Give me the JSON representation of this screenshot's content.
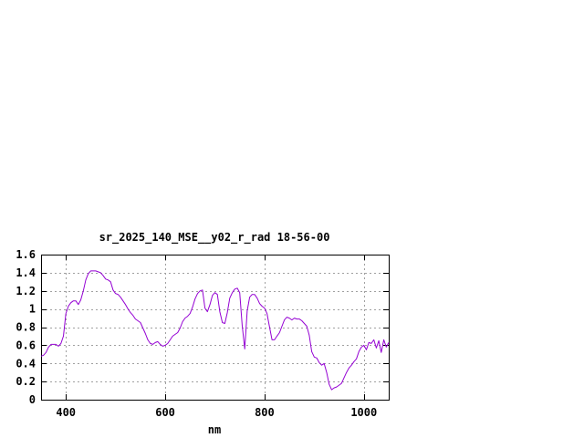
{
  "chart_data": {
    "type": "line",
    "title": "sr_2025_140_MSE__y02_r_rad 18-56-00",
    "xlabel": "nm",
    "ylabel": "",
    "xlim": [
      350,
      1050
    ],
    "ylim": [
      0,
      1.6
    ],
    "x_ticks": [
      400,
      600,
      800,
      1000
    ],
    "x_tick_labels": [
      "400",
      "600",
      "800",
      "1000"
    ],
    "y_ticks": [
      0,
      0.2,
      0.4,
      0.6,
      0.8,
      1.0,
      1.2,
      1.4,
      1.6
    ],
    "y_tick_labels": [
      "0",
      "0.2",
      "0.4",
      "0.6",
      "0.8",
      "1",
      "1.2",
      "1.4",
      "1.6"
    ],
    "grid": true,
    "colors": {
      "line": "#9400d3",
      "grid": "#a0a0a0",
      "axis": "#000000"
    },
    "series": [
      {
        "x": [
          350,
          355,
          360,
          365,
          370,
          375,
          380,
          385,
          390,
          395,
          400,
          405,
          410,
          415,
          420,
          425,
          430,
          435,
          440,
          445,
          450,
          455,
          460,
          465,
          470,
          475,
          480,
          485,
          490,
          495,
          500,
          505,
          510,
          515,
          520,
          525,
          530,
          535,
          540,
          545,
          550,
          555,
          560,
          565,
          570,
          575,
          580,
          585,
          590,
          595,
          600,
          605,
          610,
          615,
          620,
          625,
          630,
          635,
          640,
          645,
          650,
          655,
          660,
          665,
          670,
          675,
          680,
          685,
          690,
          695,
          700,
          705,
          710,
          715,
          720,
          725,
          730,
          735,
          740,
          745,
          750,
          755,
          760,
          765,
          770,
          775,
          780,
          785,
          790,
          795,
          800,
          805,
          810,
          815,
          820,
          825,
          830,
          835,
          840,
          845,
          850,
          855,
          860,
          865,
          870,
          875,
          880,
          885,
          890,
          895,
          900,
          905,
          910,
          915,
          920,
          925,
          930,
          935,
          940,
          945,
          950,
          955,
          960,
          965,
          970,
          975,
          980,
          985,
          990,
          995,
          1000,
          1005,
          1010,
          1015,
          1020,
          1025,
          1030,
          1035,
          1040,
          1045,
          1050
        ],
        "y": [
          0.48,
          0.49,
          0.52,
          0.58,
          0.61,
          0.61,
          0.61,
          0.59,
          0.62,
          0.7,
          0.95,
          1.03,
          1.07,
          1.09,
          1.09,
          1.05,
          1.1,
          1.2,
          1.32,
          1.39,
          1.42,
          1.42,
          1.42,
          1.41,
          1.4,
          1.37,
          1.33,
          1.32,
          1.3,
          1.21,
          1.17,
          1.16,
          1.13,
          1.09,
          1.05,
          1.0,
          0.96,
          0.93,
          0.89,
          0.87,
          0.85,
          0.79,
          0.73,
          0.66,
          0.62,
          0.61,
          0.63,
          0.64,
          0.61,
          0.59,
          0.6,
          0.62,
          0.66,
          0.7,
          0.72,
          0.74,
          0.79,
          0.86,
          0.9,
          0.92,
          0.95,
          1.02,
          1.11,
          1.17,
          1.2,
          1.21,
          1.01,
          0.97,
          1.05,
          1.15,
          1.18,
          1.16,
          0.97,
          0.85,
          0.84,
          0.96,
          1.12,
          1.18,
          1.22,
          1.23,
          1.18,
          0.82,
          0.56,
          0.98,
          1.13,
          1.16,
          1.16,
          1.12,
          1.06,
          1.03,
          1.01,
          0.95,
          0.8,
          0.66,
          0.66,
          0.7,
          0.74,
          0.81,
          0.88,
          0.91,
          0.9,
          0.88,
          0.9,
          0.89,
          0.89,
          0.87,
          0.84,
          0.81,
          0.71,
          0.53,
          0.47,
          0.46,
          0.41,
          0.38,
          0.4,
          0.3,
          0.17,
          0.11,
          0.13,
          0.14,
          0.16,
          0.18,
          0.24,
          0.3,
          0.35,
          0.38,
          0.42,
          0.45,
          0.53,
          0.58,
          0.6,
          0.55,
          0.63,
          0.62,
          0.66,
          0.57,
          0.65,
          0.52,
          0.66,
          0.58,
          0.63
        ]
      }
    ]
  }
}
